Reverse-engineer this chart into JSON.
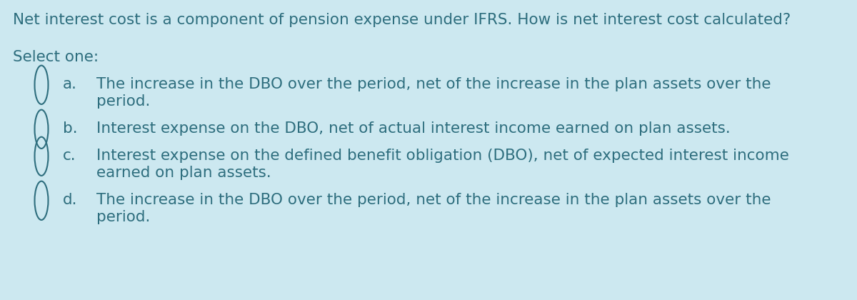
{
  "background_color": "#cce8f0",
  "text_color": "#2e6e7e",
  "title": "Net interest cost is a component of pension expense under IFRS. How is net interest cost calculated?",
  "select_one": "Select one:",
  "options": [
    {
      "letter": "a.",
      "lines": [
        "The increase in the DBO over the period, net of the increase in the plan assets over the",
        "period."
      ]
    },
    {
      "letter": "b.",
      "lines": [
        "Interest expense on the DBO, net of actual interest income earned on plan assets."
      ]
    },
    {
      "letter": "c.",
      "lines": [
        "Interest expense on the defined benefit obligation (DBO), net of expected interest income",
        "earned on plan assets."
      ]
    },
    {
      "letter": "d.",
      "lines": [
        "The increase in the DBO over the period, net of the increase in the plan assets over the",
        "period."
      ]
    }
  ],
  "title_fontsize": 15.5,
  "select_fontsize": 15.5,
  "option_fontsize": 15.5,
  "figsize": [
    12.0,
    4.2
  ],
  "dpi": 100
}
